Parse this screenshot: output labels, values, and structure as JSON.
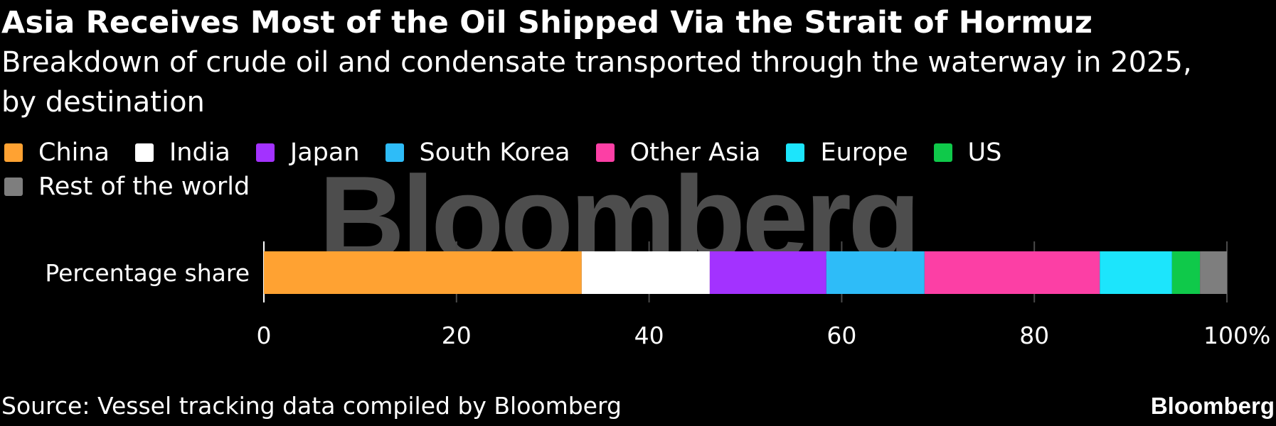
{
  "chart_data": {
    "type": "bar",
    "orientation": "horizontal",
    "stacked": true,
    "title": "Asia Receives Most of the Oil Shipped Via the Strait of Hormuz",
    "subtitle": "Breakdown of crude oil and condensate transported through the waterway in 2025, by destination",
    "categories": [
      "Percentage share"
    ],
    "series": [
      {
        "name": "China",
        "color": "#ffa232",
        "values": [
          33.0
        ]
      },
      {
        "name": "India",
        "color": "#ffffff",
        "values": [
          13.3
        ]
      },
      {
        "name": "Japan",
        "color": "#a332ff",
        "values": [
          12.1
        ]
      },
      {
        "name": "South Korea",
        "color": "#2ebcf8",
        "values": [
          10.2
        ]
      },
      {
        "name": "Other Asia",
        "color": "#fc3fa5",
        "values": [
          18.2
        ]
      },
      {
        "name": "Europe",
        "color": "#1ce5fc",
        "values": [
          7.5
        ]
      },
      {
        "name": "US",
        "color": "#0fc94a",
        "values": [
          2.9
        ]
      },
      {
        "name": "Rest of the world",
        "color": "#7e7e7e",
        "values": [
          2.8
        ]
      }
    ],
    "xlim": [
      0,
      100
    ],
    "xticks": [
      0,
      20,
      40,
      60,
      80,
      100
    ],
    "xtick_labels": [
      "0",
      "20",
      "40",
      "60",
      "80",
      "100%"
    ],
    "grid": true,
    "legend_position": "top-left",
    "source": "Source: Vessel tracking data compiled by Bloomberg",
    "background": "#000000"
  },
  "watermark": "Bloomberg",
  "brand": "Bloomberg"
}
